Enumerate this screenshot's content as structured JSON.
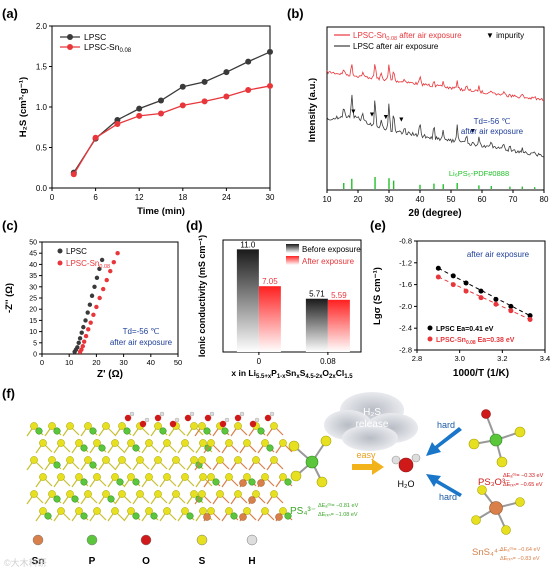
{
  "colors": {
    "black_series": "#3a3a3a",
    "red_series": "#e8363b",
    "green_ref": "#22c02a",
    "blue_note": "#1f3f9a",
    "orange": "#e07a2a"
  },
  "chart_data": [
    {
      "panel": "(a)",
      "type": "line",
      "xlabel": "Time (min)",
      "ylabel": "H₂S (cm³·g⁻¹)",
      "xlim": [
        0,
        30
      ],
      "ylim": [
        0,
        2.0
      ],
      "xticks": [
        0,
        6,
        12,
        18,
        24,
        30
      ],
      "yticks": [
        0,
        0.5,
        1.0,
        1.5,
        2.0
      ],
      "ytick_labels": [
        "0.0",
        "0.5",
        "1.0",
        "1.5",
        "2.0"
      ],
      "legend": "top-left",
      "series": [
        {
          "name": "LPSC",
          "x": [
            3,
            6,
            9,
            12,
            15,
            18,
            21,
            24,
            27,
            30
          ],
          "y": [
            0.19,
            0.61,
            0.84,
            0.98,
            1.08,
            1.25,
            1.31,
            1.43,
            1.56,
            1.68
          ]
        },
        {
          "name_main": "LPSC-Sn",
          "name_sub": "0.08",
          "x": [
            3,
            6,
            9,
            12,
            15,
            18,
            21,
            24,
            27,
            30
          ],
          "y": [
            0.17,
            0.62,
            0.79,
            0.89,
            0.92,
            1.02,
            1.07,
            1.13,
            1.21,
            1.26
          ]
        }
      ]
    },
    {
      "panel": "(b)",
      "type": "line",
      "xlabel": "2θ (degree)",
      "ylabel": "Intensity (a.u.)",
      "xlim": [
        10,
        80
      ],
      "xticks": [
        10,
        20,
        30,
        40,
        50,
        60,
        70,
        80
      ],
      "legend": "top",
      "series": [
        {
          "name_main": "LPSC-Sn",
          "name_sub": "0.08",
          "name_tail": " after air exposure"
        },
        {
          "name": "LPSC after air exposure"
        },
        {
          "name": "Li₆PS₅-PDF#0888"
        }
      ],
      "impurity_label": "impurity",
      "annotation": [
        "Td=-56 ℃",
        "after air exposure"
      ],
      "impurity_x": [
        18.5,
        24.5,
        29,
        34,
        57
      ],
      "reference_peaks": [
        {
          "x": 15.4,
          "h": 0.5
        },
        {
          "x": 18,
          "h": 0.85
        },
        {
          "x": 25.5,
          "h": 1.0
        },
        {
          "x": 30,
          "h": 0.9
        },
        {
          "x": 31.5,
          "h": 0.7
        },
        {
          "x": 40,
          "h": 0.35
        },
        {
          "x": 44.5,
          "h": 0.45
        },
        {
          "x": 47.5,
          "h": 0.4
        },
        {
          "x": 52,
          "h": 0.5
        },
        {
          "x": 59,
          "h": 0.3
        },
        {
          "x": 63,
          "h": 0.25
        },
        {
          "x": 69,
          "h": 0.2
        },
        {
          "x": 73,
          "h": 0.2
        },
        {
          "x": 77,
          "h": 0.15
        }
      ]
    },
    {
      "panel": "(c)",
      "type": "scatter",
      "xlabel": "Z' (Ω)",
      "ylabel": "-Z'' (Ω)",
      "xlim": [
        0,
        50
      ],
      "ylim": [
        0,
        50
      ],
      "xticks": [
        0,
        10,
        20,
        30,
        40,
        50
      ],
      "yticks": [
        0,
        5,
        10,
        15,
        20,
        25,
        30,
        35,
        40,
        45,
        50
      ],
      "legend": "top-left",
      "annotation": [
        "Td=-56 ℃",
        "after air exposure"
      ],
      "series": [
        {
          "name": "LPSC",
          "x": [
            12,
            12.5,
            13,
            13.5,
            14,
            14.6,
            15.2,
            16,
            16.8,
            17.6,
            18.4,
            19.3,
            20.2,
            21.1,
            22.1
          ],
          "y": [
            1,
            2,
            3,
            5,
            7,
            9.5,
            12,
            15,
            18.5,
            22,
            26,
            30,
            34,
            38,
            42
          ]
        },
        {
          "name_main": "LPSC-Sn",
          "name_sub": "0.08",
          "x": [
            14,
            14.5,
            15,
            15.5,
            16.2,
            17,
            17.9,
            18.9,
            20,
            21.2,
            22.5,
            23.8,
            25.1,
            26.4,
            27.8
          ],
          "y": [
            1,
            2,
            3.5,
            5.5,
            8,
            11,
            14,
            17.5,
            21,
            25,
            29,
            33,
            37,
            41,
            45
          ]
        }
      ]
    },
    {
      "panel": "(d)",
      "type": "bar",
      "xlabel_main": "x in Li",
      "xlabel_parts": [
        [
          "5.5+x",
          "sub"
        ],
        [
          "P",
          "n"
        ],
        [
          "1-x",
          "sub"
        ],
        [
          "Sn",
          "n"
        ],
        [
          "x",
          "sub"
        ],
        [
          "S",
          "n"
        ],
        [
          "4.5-2x",
          "sub"
        ],
        [
          "O",
          "n"
        ],
        [
          "2x",
          "sub"
        ],
        [
          "Cl",
          "n"
        ],
        [
          "1.5",
          "sub"
        ]
      ],
      "ylabel": "Ionic conductivity  (mS cm⁻¹)",
      "categories": [
        "0",
        "0.08"
      ],
      "ylim": [
        0,
        12
      ],
      "legend": "top-right",
      "series": [
        {
          "name": "Before exposure",
          "values": [
            11.0,
            5.71
          ],
          "labels": [
            "11.0",
            "5.71"
          ]
        },
        {
          "name": "After exposure",
          "values": [
            7.05,
            5.59
          ],
          "labels": [
            "7.05",
            "5.59"
          ]
        }
      ]
    },
    {
      "panel": "(e)",
      "type": "scatter",
      "xlabel": "1000/T (1/K)",
      "ylabel": "Lgσ (S cm⁻¹)",
      "xlim": [
        2.8,
        3.4
      ],
      "ylim": [
        -2.8,
        -0.8
      ],
      "xticks": [
        2.8,
        3.0,
        3.2,
        3.4
      ],
      "yticks": [
        -0.8,
        -1.2,
        -1.6,
        -2.0,
        -2.4,
        -2.8
      ],
      "xtick_labels": [
        "2.8",
        "3.0",
        "3.2",
        "3.4"
      ],
      "ytick_labels": [
        "-0.8",
        "-1.2",
        "-1.6",
        "-2.0",
        "-2.4",
        "-2.8"
      ],
      "annotation": "after air exposure",
      "legend": "bottom-left",
      "series": [
        {
          "name": "LPSC  Ea=0.41 eV",
          "x": [
            2.9,
            2.97,
            3.03,
            3.1,
            3.17,
            3.24,
            3.33
          ],
          "y": [
            -1.3,
            -1.44,
            -1.57,
            -1.72,
            -1.87,
            -2.0,
            -2.17
          ]
        },
        {
          "name_main": "LPSC-Sn",
          "name_sub": "0.08",
          "name_tail": "  Ea=0.38 eV",
          "x": [
            2.9,
            2.97,
            3.03,
            3.1,
            3.17,
            3.24,
            3.33
          ],
          "y": [
            -1.46,
            -1.6,
            -1.72,
            -1.84,
            -1.96,
            -2.08,
            -2.24
          ]
        }
      ]
    }
  ],
  "panel_f": {
    "label": "(f)",
    "atoms": [
      {
        "name": "Sn",
        "color": "#d9804a"
      },
      {
        "name": "P",
        "color": "#5bc53b"
      },
      {
        "name": "O",
        "color": "#d01a1a"
      },
      {
        "name": "S",
        "color": "#e6e020"
      },
      {
        "name": "H",
        "color": "#dddddd"
      }
    ],
    "cloud_text": [
      "H₂S",
      "release"
    ],
    "ps4_formula": "PS₄³⁻",
    "ps4_e": [
      "ΔEₐᵈˢ= −0.81 eV",
      "ΔEᵣₓₙ= −1.08 eV"
    ],
    "ps3o_formula": "PS₃O³⁻",
    "ps3o_e": [
      "ΔEₐᵈˢ= −0.33 eV",
      "ΔEᵣₓₙ= −0.65 eV"
    ],
    "sns4_formula": "SnS₄⁴⁻",
    "sns4_e": [
      "ΔEₐᵈˢ= −0.64 eV",
      "ΔEᵣₓₙ= −0.83 eV"
    ],
    "easy": "easy",
    "hard1": "hard",
    "hard2": "hard",
    "water": "H₂O"
  },
  "watermark": "©大木科研"
}
